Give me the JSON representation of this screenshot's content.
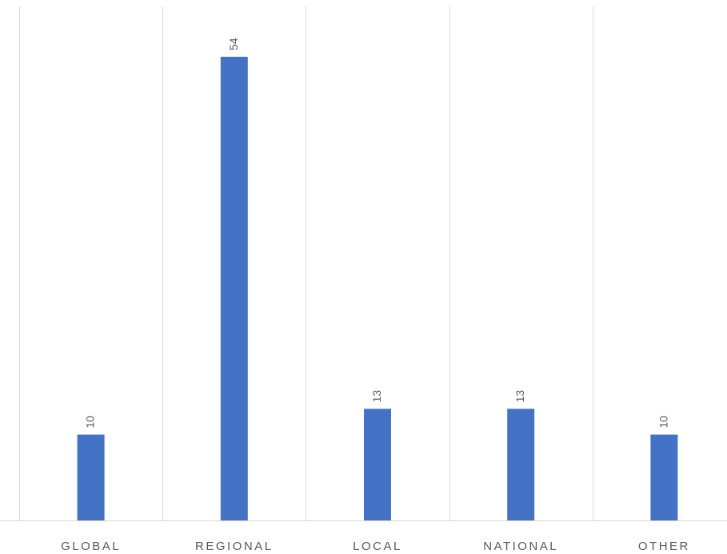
{
  "chart_data": {
    "type": "bar",
    "categories": [
      "GLOBAL",
      "REGIONAL",
      "LOCAL",
      "NATIONAL",
      "OTHER"
    ],
    "values": [
      10,
      54,
      13,
      13,
      10
    ],
    "data_labels": [
      "10",
      "54",
      "13",
      "13",
      "10"
    ],
    "title": "",
    "xlabel": "",
    "ylabel": "",
    "ylim": [
      0,
      60
    ],
    "grid": "vertical separators between categories",
    "legend": "none",
    "colors": {
      "bar": "#4472C4",
      "grid": "#D9D9D9",
      "text": "#595959"
    }
  }
}
